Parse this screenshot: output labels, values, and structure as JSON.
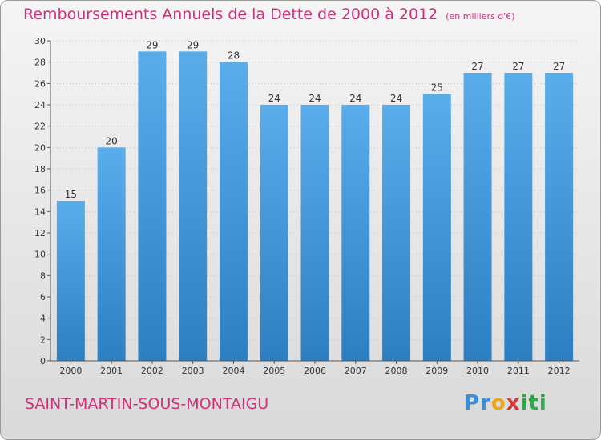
{
  "header": {
    "title": "Remboursements Annuels de la Dette de 2000 à 2012",
    "unit": "(en milliers d'€)"
  },
  "footer": {
    "place": "SAINT-MARTIN-SOUS-MONTAIGU",
    "logo": [
      {
        "char": "P",
        "color": "#3a8fd6"
      },
      {
        "char": "r",
        "color": "#3a8fd6"
      },
      {
        "char": "o",
        "color": "#e8a61e"
      },
      {
        "char": "x",
        "color": "#d63a3a"
      },
      {
        "char": "i",
        "color": "#2fa84a"
      },
      {
        "char": "t",
        "color": "#2fa84a"
      },
      {
        "char": "i",
        "color": "#2fa84a"
      }
    ]
  },
  "colors": {
    "bar_top": "#5aaceb",
    "bar_bottom": "#2d7fc1",
    "accent": "#d0307a"
  },
  "chart_data": {
    "type": "bar",
    "categories": [
      "2000",
      "2001",
      "2002",
      "2003",
      "2004",
      "2005",
      "2006",
      "2007",
      "2008",
      "2009",
      "2010",
      "2011",
      "2012"
    ],
    "values": [
      15,
      20,
      29,
      29,
      28,
      24,
      24,
      24,
      24,
      25,
      27,
      27,
      27
    ],
    "ylim": [
      0,
      30
    ],
    "yticks": [
      0,
      2,
      4,
      6,
      8,
      10,
      12,
      14,
      16,
      18,
      20,
      22,
      24,
      26,
      28,
      30
    ],
    "grid": true
  }
}
